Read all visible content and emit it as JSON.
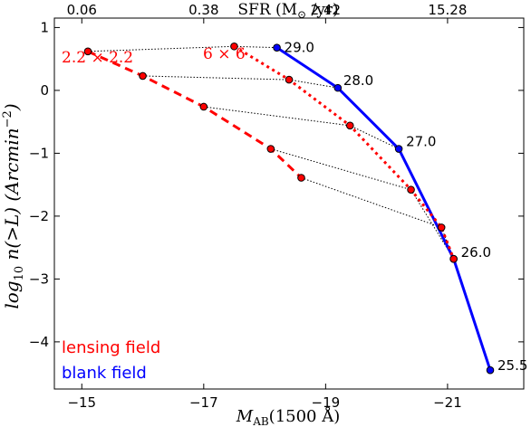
{
  "chart_data": {
    "type": "line",
    "xlabel_main": "M",
    "xlabel_sub": "AB",
    "xlabel_rest": "(1500 Å)",
    "ylabel_prefix": "log",
    "ylabel_sub": "10",
    "ylabel_main": " n(>L)  (Arcmin",
    "ylabel_exp": "−2",
    "ylabel_close": ")",
    "top_label_prefix": "SFR (M",
    "top_label_sub": "⊙",
    "top_label_rest": " /yr)",
    "xlim": [
      -14.55,
      -22.25
    ],
    "ylim": [
      -4.75,
      1.15
    ],
    "x_ticks": [
      -15,
      -17,
      -19,
      -21
    ],
    "x_tick_labels": [
      "−15",
      "−17",
      "−19",
      "−21"
    ],
    "y_ticks": [
      1,
      0,
      -1,
      -2,
      -3,
      -4
    ],
    "y_tick_labels": [
      "1",
      "0",
      "−1",
      "−2",
      "−3",
      "−4"
    ],
    "top_ticks": [
      -15.0,
      -17.0,
      -19.0,
      -21.0
    ],
    "top_tick_labels": [
      "0.06",
      "0.38",
      "2.42",
      "15.28"
    ],
    "series": [
      {
        "name": "blank field",
        "color": "#0000ff",
        "style": "solid",
        "x": [
          -18.2,
          -19.2,
          -20.2,
          -21.1,
          -21.7
        ],
        "y": [
          0.68,
          0.04,
          -0.93,
          -2.68,
          -4.45
        ],
        "point_labels": [
          "29.0",
          "28.0",
          "27.0",
          "26.0",
          "25.5"
        ]
      },
      {
        "name": "6 × 6",
        "color": "#ff0000",
        "style": "dotted",
        "x": [
          -17.5,
          -18.4,
          -19.4,
          -20.4,
          -20.9,
          -21.1
        ],
        "y": [
          0.7,
          0.17,
          -0.56,
          -1.58,
          -2.18,
          -2.68
        ]
      },
      {
        "name": "2.2 × 2.2",
        "color": "#ff0000",
        "style": "dashed",
        "x": [
          -15.1,
          -16.0,
          -17.0,
          -18.1,
          -18.6
        ],
        "y": [
          0.62,
          0.23,
          -0.26,
          -0.93,
          -1.39
        ]
      }
    ],
    "connectors": [
      [
        [
          -15.1,
          0.62
        ],
        [
          -17.5,
          0.7
        ],
        [
          -18.2,
          0.68
        ]
      ],
      [
        [
          -16.0,
          0.23
        ],
        [
          -18.4,
          0.17
        ],
        [
          -19.2,
          0.04
        ]
      ],
      [
        [
          -17.0,
          -0.26
        ],
        [
          -19.4,
          -0.56
        ],
        [
          -20.2,
          -0.93
        ]
      ],
      [
        [
          -18.1,
          -0.93
        ],
        [
          -20.4,
          -1.58
        ],
        [
          -21.1,
          -2.68
        ]
      ],
      [
        [
          -18.6,
          -1.39
        ],
        [
          -20.9,
          -2.18
        ],
        [
          -21.1,
          -2.68
        ]
      ]
    ],
    "annotations": [
      "2.2 × 2.2",
      "6 × 6"
    ],
    "legend": [
      "lensing field",
      "blank field"
    ],
    "legend_colors": [
      "#ff0000",
      "#0000ff"
    ],
    "grid": false,
    "legend_placement": "lower-left"
  }
}
